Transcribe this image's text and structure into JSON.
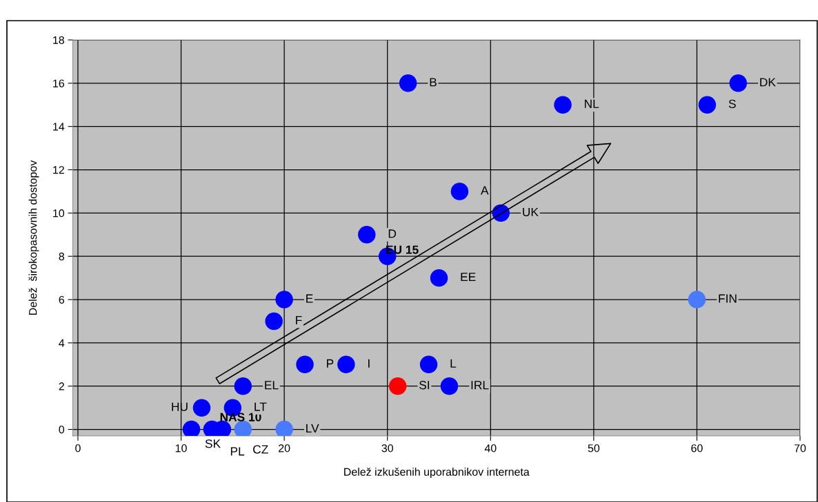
{
  "chart_data": {
    "type": "scatter",
    "xlabel": "Delež izkušenih uporabnikov interneta",
    "ylabel": "Delež  širokopasovnih dostopov",
    "xlim": [
      -0.5,
      70
    ],
    "ylim": [
      -0.3,
      18
    ],
    "xticks": [
      0,
      10,
      20,
      30,
      40,
      50,
      60,
      70
    ],
    "yticks": [
      0,
      2,
      4,
      6,
      8,
      10,
      12,
      14,
      16,
      18
    ],
    "grid": true,
    "legend": false,
    "marker": "circle",
    "series": [
      {
        "color": "#0000ff",
        "x": [
          32,
          64,
          47,
          61,
          37,
          41,
          28,
          35,
          20,
          19,
          22,
          26,
          34,
          16,
          36,
          12,
          15,
          11,
          14
        ],
        "values": [
          16,
          16,
          15,
          15,
          11,
          10,
          9,
          7,
          6,
          5,
          3,
          3,
          3,
          2,
          2,
          1,
          1,
          0,
          0
        ]
      },
      {
        "color": "#4a7aff",
        "x": [
          60,
          16,
          20
        ],
        "values": [
          6,
          0,
          0
        ]
      },
      {
        "color": "#ff0000",
        "x": [
          31
        ],
        "values": [
          2
        ]
      },
      {
        "name": "EU 15",
        "color": "#0000ff",
        "x": [
          30
        ],
        "values": [
          8
        ]
      },
      {
        "name": "NAS 10",
        "color": "#0000ff",
        "x": [
          13
        ],
        "values": [
          0
        ]
      }
    ],
    "annotations": [
      {
        "text": "B",
        "x": 32,
        "y": 16
      },
      {
        "text": "DK",
        "x": 64,
        "y": 16
      },
      {
        "text": "NL",
        "x": 47,
        "y": 15
      },
      {
        "text": "S",
        "x": 61,
        "y": 15
      },
      {
        "text": "A",
        "x": 37,
        "y": 11
      },
      {
        "text": "UK",
        "x": 41,
        "y": 10
      },
      {
        "text": "D",
        "x": 28,
        "y": 9
      },
      {
        "text": "EE",
        "x": 35,
        "y": 7
      },
      {
        "text": "E",
        "x": 20,
        "y": 6
      },
      {
        "text": "FIN",
        "x": 60,
        "y": 6
      },
      {
        "text": "F",
        "x": 19,
        "y": 5
      },
      {
        "text": "P",
        "x": 22,
        "y": 3
      },
      {
        "text": "I",
        "x": 26,
        "y": 3
      },
      {
        "text": "L",
        "x": 34,
        "y": 3
      },
      {
        "text": "EL",
        "x": 16,
        "y": 2
      },
      {
        "text": "SI",
        "x": 31,
        "y": 2
      },
      {
        "text": "IRL",
        "x": 36,
        "y": 2
      },
      {
        "text": "HU",
        "x": 12,
        "y": 1
      },
      {
        "text": "LT",
        "x": 15,
        "y": 1
      },
      {
        "text": "SK",
        "x": 11,
        "y": 0
      },
      {
        "text": "PL",
        "x": 14,
        "y": 0
      },
      {
        "text": "CZ",
        "x": 16,
        "y": 0
      },
      {
        "text": "LV",
        "x": 20,
        "y": 0
      }
    ]
  }
}
